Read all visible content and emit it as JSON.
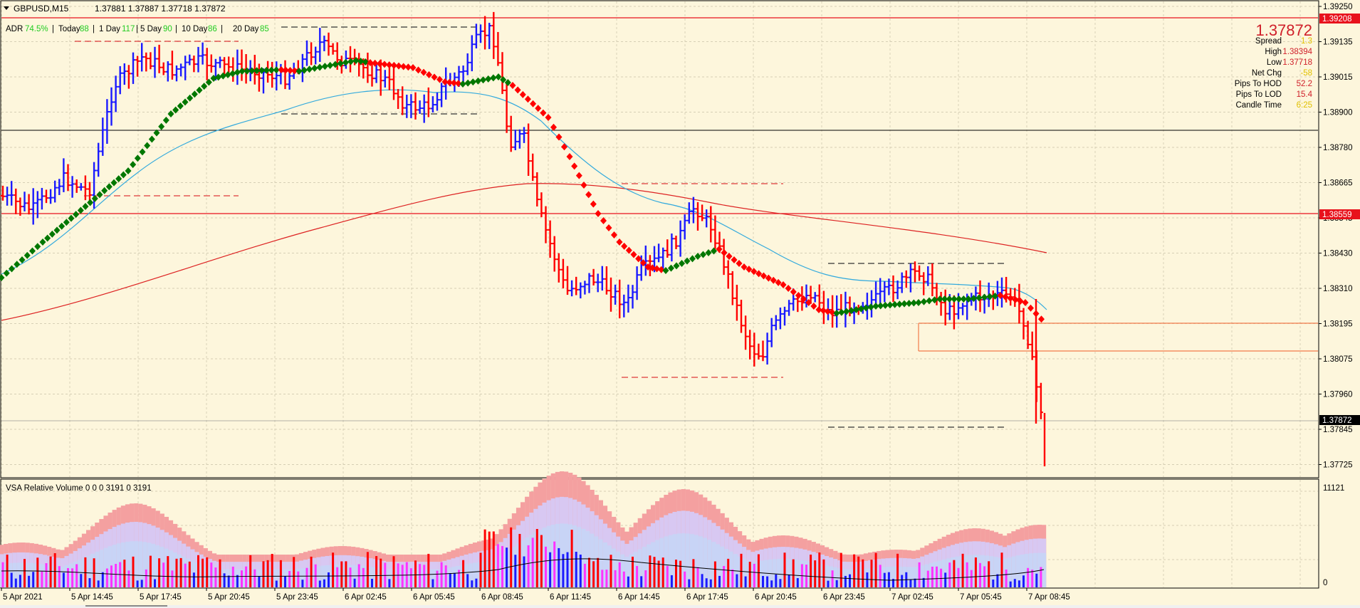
{
  "header": {
    "symbol": "GBPUSD,M15",
    "ohlc": "1.37881 1.37887 1.37718 1.37872"
  },
  "adr": {
    "label": "ADR",
    "pct": "74.5%",
    "today_label": "Today",
    "today": "88",
    "d1_label": "1 Day",
    "d1": "117",
    "d5_label": "5 Day",
    "d5": "90",
    "d10_label": "10 Day",
    "d10": "86",
    "d20_label": "20 Day",
    "d20": "85"
  },
  "info_panel": {
    "bid": "1.37872",
    "spread_label": "Spread",
    "spread": "1.3",
    "high_label": "High",
    "high": "1.38394",
    "low_label": "Low",
    "low": "1.37718",
    "netchg_label": "Net Chg",
    "netchg": "-58",
    "hod_label": "Pips To HOD",
    "hod": "52.2",
    "lod_label": "Pips To LOD",
    "lod": "15.4",
    "ctime_label": "Candle Time",
    "ctime": "6:25"
  },
  "price_axis": {
    "ticks": [
      "1.39250",
      "1.39135",
      "1.39015",
      "1.38900",
      "1.38780",
      "1.38665",
      "1.38545",
      "1.38430",
      "1.38310",
      "1.38195",
      "1.38075",
      "1.37960",
      "1.37845",
      "1.37725"
    ],
    "tags": [
      {
        "value": "1.39208",
        "bg": "#e8121c",
        "fg": "#ffffff"
      },
      {
        "value": "1.38559",
        "bg": "#e8121c",
        "fg": "#ffffff"
      },
      {
        "value": "1.37872",
        "bg": "#000000",
        "fg": "#ffffff"
      }
    ]
  },
  "time_axis": {
    "labels": [
      "5 Apr 2021",
      "5 Apr 14:45",
      "5 Apr 17:45",
      "5 Apr 20:45",
      "5 Apr 23:45",
      "6 Apr 02:45",
      "6 Apr 05:45",
      "6 Apr 08:45",
      "6 Apr 11:45",
      "6 Apr 14:45",
      "6 Apr 17:45",
      "6 Apr 20:45",
      "6 Apr 23:45",
      "7 Apr 02:45",
      "7 Apr 05:45",
      "7 Apr 08:45"
    ]
  },
  "volume": {
    "title": "VSA Relative Volume 0 0 0 3191 0 3191",
    "axis_max": "11121",
    "axis_min": "0"
  },
  "colors": {
    "background": "#fdf6dc",
    "bull_bar": "#1a1aff",
    "bear_bar": "#ff0000",
    "trend_up": "#007700",
    "trend_down": "#ff0000",
    "ma_fast": "#33aadd",
    "ma_slow": "#dd2222",
    "vol_magenta": "#ff33ff"
  }
}
